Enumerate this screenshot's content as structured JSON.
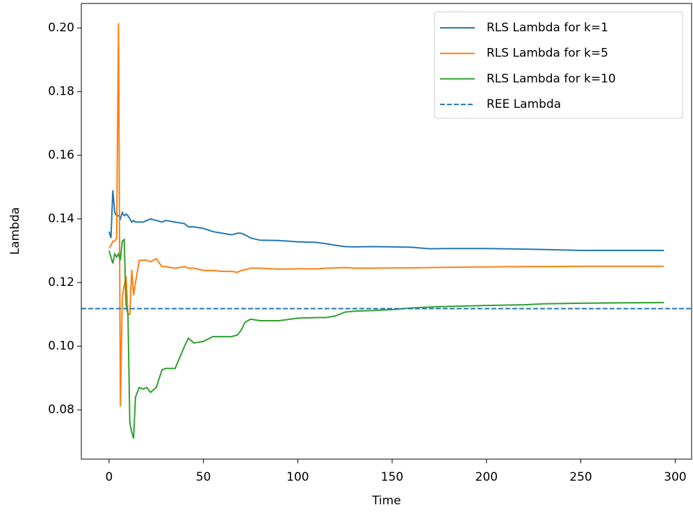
{
  "chart_data": {
    "type": "line",
    "x_label": "Time",
    "y_label": "Lambda",
    "x": [
      0,
      1,
      2,
      3,
      4,
      5,
      6,
      7,
      8,
      9,
      10,
      11,
      12,
      13,
      14,
      16,
      18,
      20,
      22,
      25,
      28,
      30,
      35,
      40,
      42,
      45,
      50,
      55,
      60,
      65,
      68,
      70,
      72,
      75,
      80,
      90,
      100,
      110,
      115,
      120,
      125,
      130,
      140,
      150,
      160,
      170,
      180,
      200,
      220,
      230,
      250,
      270,
      294
    ],
    "series": [
      {
        "name": "RLS Lambda for k=1",
        "color": "#1f77b4",
        "values": [
          0.136,
          0.134,
          0.149,
          0.142,
          0.141,
          0.141,
          0.14,
          0.142,
          0.141,
          0.1415,
          0.141,
          0.14,
          0.139,
          0.1395,
          0.139,
          0.139,
          0.139,
          0.1395,
          0.14,
          0.1395,
          0.139,
          0.1395,
          0.139,
          0.1385,
          0.1375,
          0.1375,
          0.137,
          0.136,
          0.1355,
          0.135,
          0.1355,
          0.1355,
          0.135,
          0.134,
          0.1333,
          0.1332,
          0.1328,
          0.1326,
          0.1322,
          0.1317,
          0.1313,
          0.1312,
          0.1313,
          0.1312,
          0.1311,
          0.1306,
          0.1307,
          0.1307,
          0.1305,
          0.1304,
          0.1301,
          0.1301,
          0.1301
        ]
      },
      {
        "name": "RLS Lambda for k=5",
        "color": "#ff7f0e",
        "values": [
          0.131,
          0.1315,
          0.133,
          0.133,
          0.134,
          0.2015,
          0.081,
          0.115,
          0.119,
          0.122,
          0.11,
          0.11,
          0.124,
          0.116,
          0.12,
          0.127,
          0.127,
          0.127,
          0.1265,
          0.1275,
          0.125,
          0.125,
          0.1245,
          0.125,
          0.1245,
          0.1245,
          0.1238,
          0.1238,
          0.1235,
          0.1235,
          0.1232,
          0.1238,
          0.124,
          0.1245,
          0.1245,
          0.1242,
          0.1243,
          0.1243,
          0.1245,
          0.1246,
          0.1247,
          0.1245,
          0.1245,
          0.1246,
          0.1246,
          0.1247,
          0.1248,
          0.1249,
          0.125,
          0.125,
          0.1251,
          0.1251,
          0.1251
        ]
      },
      {
        "name": "RLS Lambda for k=10",
        "color": "#2ca02c",
        "values": [
          0.13,
          0.128,
          0.126,
          0.129,
          0.128,
          0.129,
          0.127,
          0.133,
          0.1335,
          0.113,
          0.11,
          0.076,
          0.073,
          0.071,
          0.084,
          0.087,
          0.0865,
          0.087,
          0.0855,
          0.087,
          0.0925,
          0.093,
          0.093,
          0.1,
          0.1025,
          0.101,
          0.1015,
          0.103,
          0.103,
          0.103,
          0.1035,
          0.105,
          0.1075,
          0.1085,
          0.108,
          0.108,
          0.1088,
          0.109,
          0.109,
          0.1095,
          0.1107,
          0.111,
          0.1112,
          0.1115,
          0.112,
          0.1123,
          0.1125,
          0.1128,
          0.113,
          0.1133,
          0.1135,
          0.1136,
          0.1137
        ]
      }
    ],
    "hlines": [
      {
        "name": "REE Lambda",
        "color": "#1f77b4",
        "value": 0.1118,
        "style": "dashed"
      }
    ],
    "xlim": [
      -14.7,
      308.7
    ],
    "ylim": [
      0.0645,
      0.2077
    ],
    "xticks": [
      0,
      50,
      100,
      150,
      200,
      250,
      300
    ],
    "yticks": [
      0.08,
      {
        "value": 0.1,
        "label": "0.10"
      },
      0.12,
      0.14,
      0.16,
      0.18,
      {
        "value": 0.2,
        "label": "0.20"
      }
    ],
    "grid": false,
    "legend": "upper right"
  }
}
